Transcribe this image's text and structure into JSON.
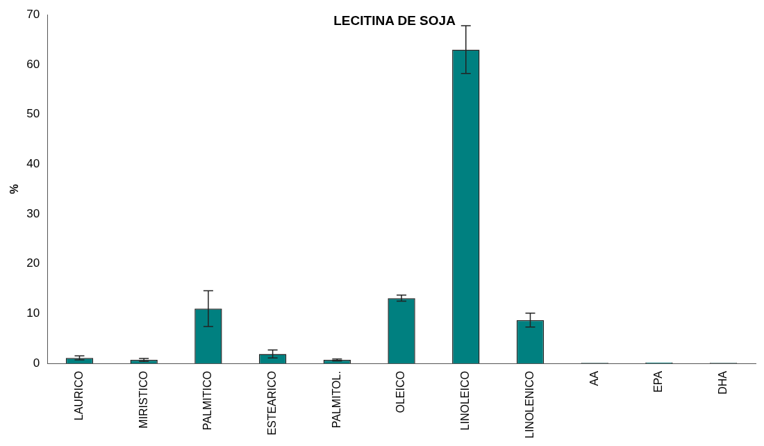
{
  "chart_data": {
    "type": "bar",
    "title": "LECITINA DE SOJA",
    "ylabel": "%",
    "categories": [
      "LAURICO",
      "MIRISTICO",
      "PALMITICO",
      "ESTEARICO",
      "PALMITOL.",
      "OLEICO",
      "LINOLEICO",
      "LINOLENICO",
      "AA",
      "EPA",
      "DHA"
    ],
    "values": [
      1.1,
      0.7,
      11.0,
      1.9,
      0.7,
      13.1,
      63.0,
      8.7,
      0.1,
      0.2,
      0.1
    ],
    "errors": [
      0.4,
      0.3,
      3.6,
      0.8,
      0.2,
      0.6,
      4.8,
      1.4,
      null,
      null,
      null
    ],
    "color": "#008080",
    "ylim": [
      0,
      70
    ],
    "yticks": [
      0,
      10,
      20,
      30,
      40,
      50,
      60,
      70
    ],
    "grid": false,
    "legend": false
  }
}
